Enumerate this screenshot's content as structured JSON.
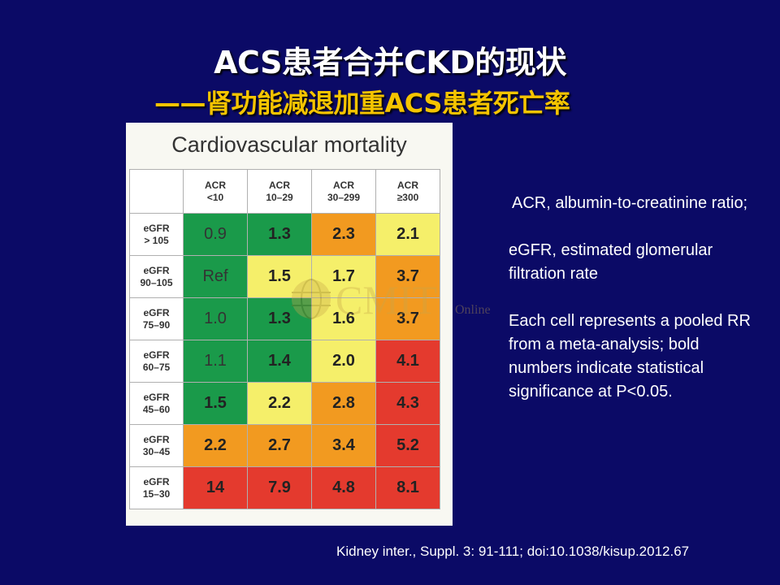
{
  "slide": {
    "title": "ACS患者合并CKD的现状",
    "subtitle": "——肾功能减退加重ACS患者死亡率"
  },
  "notes": [
    "ACR, albumin-to-creatinine ratio;",
    "eGFR, estimated glomerular filtration rate",
    "Each cell represents a pooled RR from a meta-analysis; bold numbers indicate statistical significance at P<0.05."
  ],
  "citation": "Kidney inter., Suppl. 3: 91-111; doi:10.1038/kisup.2012.67",
  "watermark": {
    "brand": "CMIT",
    "suffix": "Online"
  },
  "colors": {
    "background": "#0b0a66",
    "green": "#1a9a4a",
    "yellow": "#f5ef6a",
    "orange": "#f29a20",
    "red": "#e43a2e"
  },
  "chart_data": {
    "type": "heatmap",
    "title": "Cardiovascular mortality",
    "columns": [
      [
        "ACR",
        "<10"
      ],
      [
        "ACR",
        "10–29"
      ],
      [
        "ACR",
        "30–299"
      ],
      [
        "ACR",
        "≥300"
      ]
    ],
    "rows": [
      [
        "eGFR",
        "> 105"
      ],
      [
        "eGFR",
        "90–105"
      ],
      [
        "eGFR",
        "75–90"
      ],
      [
        "eGFR",
        "60–75"
      ],
      [
        "eGFR",
        "45–60"
      ],
      [
        "eGFR",
        "30–45"
      ],
      [
        "eGFR",
        "15–30"
      ]
    ],
    "values": [
      [
        "0.9",
        "1.3",
        "2.3",
        "2.1"
      ],
      [
        "Ref",
        "1.5",
        "1.7",
        "3.7"
      ],
      [
        "1.0",
        "1.3",
        "1.6",
        "3.7"
      ],
      [
        "1.1",
        "1.4",
        "2.0",
        "4.1"
      ],
      [
        "1.5",
        "2.2",
        "2.8",
        "4.3"
      ],
      [
        "2.2",
        "2.7",
        "3.4",
        "5.2"
      ],
      [
        "14",
        "7.9",
        "4.8",
        "8.1"
      ]
    ],
    "significant": [
      [
        false,
        true,
        true,
        true
      ],
      [
        false,
        true,
        true,
        true
      ],
      [
        false,
        true,
        true,
        true
      ],
      [
        false,
        true,
        true,
        true
      ],
      [
        true,
        true,
        true,
        true
      ],
      [
        true,
        true,
        true,
        true
      ],
      [
        true,
        true,
        true,
        true
      ]
    ],
    "risk_levels": [
      [
        "green",
        "green",
        "orange",
        "yellow"
      ],
      [
        "green",
        "yellow",
        "yellow",
        "orange"
      ],
      [
        "green",
        "green",
        "yellow",
        "orange"
      ],
      [
        "green",
        "green",
        "yellow",
        "red"
      ],
      [
        "green",
        "yellow",
        "orange",
        "red"
      ],
      [
        "orange",
        "orange",
        "orange",
        "red"
      ],
      [
        "red",
        "red",
        "red",
        "red"
      ]
    ]
  }
}
